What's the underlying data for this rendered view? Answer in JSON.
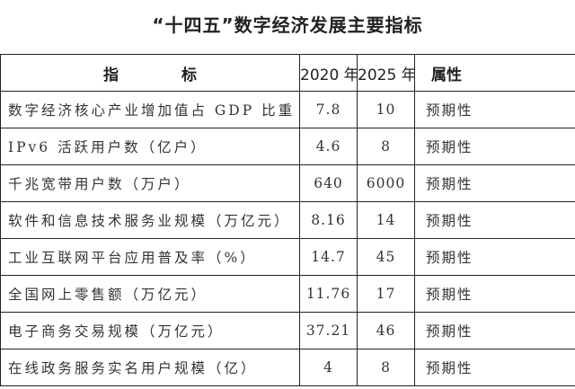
{
  "title": "“十四五”数字经济发展主要指标",
  "table": {
    "headers": [
      "指",
      "标",
      "2020 年",
      "2025 年",
      "属性"
    ],
    "rows": [
      {
        "indicator": "数字经济核心产业增加值占 GDP 比重（%）",
        "y2020": "7.8",
        "y2025": "10",
        "attribute": "预期性"
      },
      {
        "indicator": "IPv6 活跃用户数（亿户）",
        "y2020": "4.6",
        "y2025": "8",
        "attribute": "预期性"
      },
      {
        "indicator": "千兆宽带用户数（万户）",
        "y2020": "640",
        "y2025": "6000",
        "attribute": "预期性"
      },
      {
        "indicator": "软件和信息技术服务业规模（万亿元）",
        "y2020": "8.16",
        "y2025": "14",
        "attribute": "预期性"
      },
      {
        "indicator": "工业互联网平台应用普及率（%）",
        "y2020": "14.7",
        "y2025": "45",
        "attribute": "预期性"
      },
      {
        "indicator": "全国网上零售额（万亿元）",
        "y2020": "11.76",
        "y2025": "17",
        "attribute": "预期性"
      },
      {
        "indicator": "电子商务交易规模（万亿元）",
        "y2020": "37.21",
        "y2025": "46",
        "attribute": "预期性"
      },
      {
        "indicator": "在线政务服务实名用户规模（亿）",
        "y2020": "4",
        "y2025": "8",
        "attribute": "预期性"
      }
    ]
  }
}
